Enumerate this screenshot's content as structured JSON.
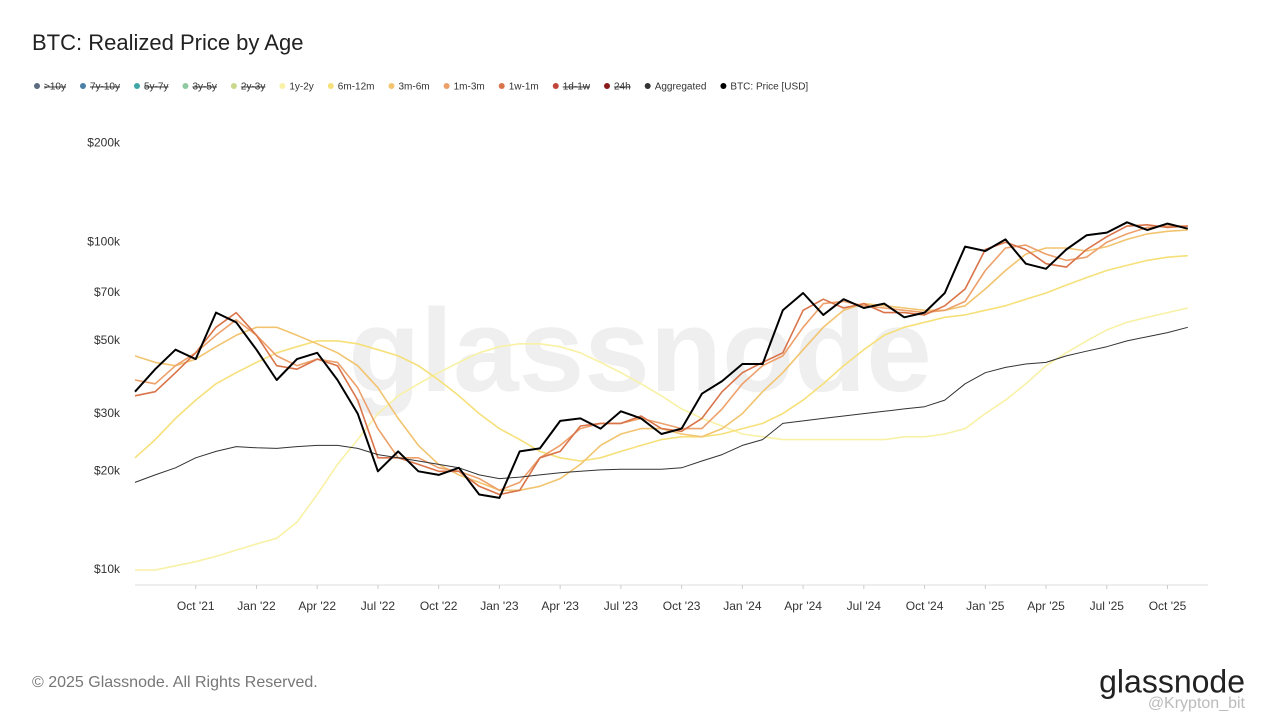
{
  "chart_data": {
    "type": "line",
    "title": "BTC: Realized Price by Age",
    "watermark": "glassnode",
    "log_scale": true,
    "grid": false,
    "x": [
      "2021-07",
      "2021-08",
      "2021-09",
      "2021-10",
      "2021-11",
      "2021-12",
      "2022-01",
      "2022-02",
      "2022-03",
      "2022-04",
      "2022-05",
      "2022-06",
      "2022-07",
      "2022-08",
      "2022-09",
      "2022-10",
      "2022-11",
      "2022-12",
      "2023-01",
      "2023-02",
      "2023-03",
      "2023-04",
      "2023-05",
      "2023-06",
      "2023-07",
      "2023-08",
      "2023-09",
      "2023-10",
      "2023-11",
      "2023-12",
      "2024-01",
      "2024-02",
      "2024-03",
      "2024-04",
      "2024-05",
      "2024-06",
      "2024-07",
      "2024-08",
      "2024-09",
      "2024-10",
      "2024-11",
      "2024-12",
      "2025-01",
      "2025-02",
      "2025-03",
      "2025-04",
      "2025-05",
      "2025-06",
      "2025-07",
      "2025-08",
      "2025-09",
      "2025-10",
      "2025-11"
    ],
    "xlim": [
      "2021-07",
      "2025-12"
    ],
    "xticks": [
      {
        "value": "2021-10",
        "label": "Oct '21"
      },
      {
        "value": "2022-01",
        "label": "Jan '22"
      },
      {
        "value": "2022-04",
        "label": "Apr '22"
      },
      {
        "value": "2022-07",
        "label": "Jul '22"
      },
      {
        "value": "2022-10",
        "label": "Oct '22"
      },
      {
        "value": "2023-01",
        "label": "Jan '23"
      },
      {
        "value": "2023-04",
        "label": "Apr '23"
      },
      {
        "value": "2023-07",
        "label": "Jul '23"
      },
      {
        "value": "2023-10",
        "label": "Oct '23"
      },
      {
        "value": "2024-01",
        "label": "Jan '24"
      },
      {
        "value": "2024-04",
        "label": "Apr '24"
      },
      {
        "value": "2024-07",
        "label": "Jul '24"
      },
      {
        "value": "2024-10",
        "label": "Oct '24"
      },
      {
        "value": "2025-01",
        "label": "Jan '25"
      },
      {
        "value": "2025-04",
        "label": "Apr '25"
      },
      {
        "value": "2025-07",
        "label": "Jul '25"
      },
      {
        "value": "2025-10",
        "label": "Oct '25"
      }
    ],
    "ylim": [
      9000,
      220000
    ],
    "yticks": [
      {
        "value": 10000,
        "label": "$10k"
      },
      {
        "value": 20000,
        "label": "$20k"
      },
      {
        "value": 30000,
        "label": "$30k"
      },
      {
        "value": 50000,
        "label": "$50k"
      },
      {
        "value": 70000,
        "label": "$70k"
      },
      {
        "value": 100000,
        "label": "$100k"
      },
      {
        "value": 200000,
        "label": "$200k"
      }
    ],
    "series": [
      {
        "name": ">10y",
        "color": "#5b6b80",
        "hidden": true
      },
      {
        "name": "7y-10y",
        "color": "#4a7fa8",
        "hidden": true
      },
      {
        "name": "5y-7y",
        "color": "#3fa6a8",
        "hidden": true
      },
      {
        "name": "3y-5y",
        "color": "#8fc9a0",
        "hidden": true
      },
      {
        "name": "2y-3y",
        "color": "#c9d88a",
        "hidden": true
      },
      {
        "name": "1y-2y",
        "color": "#f8f1a6",
        "values": [
          10000,
          10000,
          10300,
          10600,
          11000,
          11500,
          12000,
          12500,
          14000,
          17000,
          21000,
          25000,
          30000,
          34000,
          37000,
          40000,
          43000,
          46000,
          48000,
          49000,
          49000,
          48000,
          46000,
          43000,
          40000,
          37000,
          34000,
          31000,
          29000,
          27500,
          26000,
          25500,
          25000,
          25000,
          25000,
          25000,
          25000,
          25000,
          25500,
          25500,
          26000,
          27000,
          30000,
          33000,
          37000,
          42000,
          46000,
          50000,
          54000,
          57000,
          59000,
          61000,
          63000
        ]
      },
      {
        "name": "6m-12m",
        "color": "#f6e07a",
        "values": [
          22000,
          25000,
          29000,
          33000,
          37000,
          40000,
          43000,
          46000,
          48000,
          50000,
          50000,
          49000,
          47000,
          45000,
          42000,
          38000,
          34000,
          30000,
          27000,
          25000,
          23000,
          22000,
          21500,
          22000,
          23000,
          24000,
          25000,
          25500,
          25500,
          26000,
          27000,
          28000,
          30000,
          33000,
          37000,
          42000,
          47000,
          52000,
          55000,
          57000,
          59000,
          60000,
          62000,
          64000,
          67000,
          70000,
          74000,
          78000,
          82000,
          85000,
          88000,
          90000,
          91000
        ]
      },
      {
        "name": "3m-6m",
        "color": "#f2c470",
        "values": [
          45000,
          43000,
          42000,
          44000,
          48000,
          52000,
          55000,
          55000,
          52000,
          49000,
          46000,
          42000,
          36000,
          29000,
          24000,
          21000,
          19500,
          18500,
          17500,
          17500,
          18000,
          19000,
          21000,
          24000,
          26000,
          27000,
          27000,
          26000,
          25500,
          27000,
          30000,
          35000,
          40000,
          47000,
          55000,
          62000,
          65000,
          64000,
          63000,
          62000,
          62000,
          64000,
          72000,
          82000,
          92000,
          96000,
          96000,
          94000,
          97000,
          102000,
          106000,
          108000,
          109000
        ]
      },
      {
        "name": "1m-3m",
        "color": "#eda06a",
        "values": [
          38000,
          37000,
          42000,
          46000,
          52000,
          58000,
          52000,
          45000,
          42000,
          44000,
          43000,
          36000,
          27000,
          22000,
          22000,
          20500,
          20000,
          19000,
          17500,
          18500,
          22000,
          24000,
          27000,
          28000,
          28000,
          29000,
          28000,
          27000,
          27000,
          31000,
          37000,
          42000,
          45000,
          55000,
          65000,
          66000,
          64000,
          63000,
          62000,
          61000,
          62000,
          66000,
          82000,
          96000,
          98000,
          92000,
          88000,
          90000,
          100000,
          106000,
          111000,
          112000,
          112000
        ]
      },
      {
        "name": "1w-1m",
        "color": "#d9744a",
        "values": [
          34000,
          35000,
          40000,
          46000,
          55000,
          61000,
          52000,
          42000,
          41000,
          44000,
          42000,
          33000,
          22000,
          22000,
          21000,
          20000,
          20000,
          18000,
          17000,
          17500,
          22000,
          23000,
          27500,
          28000,
          28000,
          29500,
          27000,
          26500,
          29000,
          35000,
          40000,
          43000,
          46000,
          62000,
          67000,
          63000,
          65000,
          61000,
          61000,
          60000,
          64000,
          72000,
          95000,
          100000,
          95000,
          86000,
          84000,
          95000,
          104000,
          112000,
          113000,
          111000,
          112000
        ]
      },
      {
        "name": "1d-1w",
        "color": "#c0453a",
        "hidden": true
      },
      {
        "name": "24h",
        "color": "#8b1a1a",
        "hidden": true
      },
      {
        "name": "Aggregated",
        "color": "#333333",
        "values": [
          18500,
          19500,
          20500,
          22000,
          23000,
          23800,
          23600,
          23500,
          23800,
          24000,
          24000,
          23500,
          22500,
          22000,
          21500,
          21000,
          20500,
          19500,
          19000,
          19200,
          19500,
          19800,
          20000,
          20200,
          20300,
          20300,
          20300,
          20500,
          21500,
          22500,
          24000,
          25000,
          28000,
          28500,
          29000,
          29500,
          30000,
          30500,
          31000,
          31500,
          33000,
          37000,
          40000,
          41500,
          42500,
          43000,
          45000,
          46500,
          48000,
          50000,
          51500,
          53000,
          55000
        ]
      },
      {
        "name": "BTC: Price [USD]",
        "color": "#000000",
        "values": [
          35000,
          41000,
          47000,
          44000,
          61000,
          57000,
          47000,
          38000,
          44000,
          46000,
          38000,
          30000,
          20000,
          23000,
          20000,
          19500,
          20500,
          17000,
          16600,
          23000,
          23500,
          28500,
          29000,
          27000,
          30500,
          29000,
          26000,
          27000,
          34500,
          37700,
          42500,
          42500,
          62000,
          70000,
          60000,
          67000,
          63000,
          65000,
          59000,
          61000,
          70000,
          97000,
          94000,
          102000,
          86000,
          83000,
          95000,
          105000,
          107000,
          115000,
          109000,
          114000,
          110000
        ]
      }
    ]
  },
  "footer": {
    "copyright": "© 2025 Glassnode. All Rights Reserved.",
    "logo": "glassnode",
    "credit": "@Krypton_bit"
  }
}
